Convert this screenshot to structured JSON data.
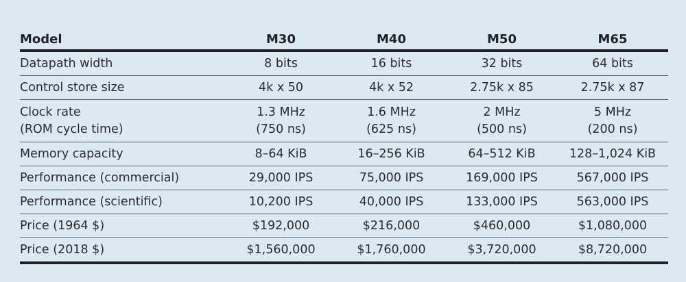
{
  "table": {
    "header": {
      "label": "Model",
      "models": [
        "M30",
        "M40",
        "M50",
        "M65"
      ]
    },
    "rows": [
      {
        "label": "Datapath width",
        "values": [
          "8 bits",
          "16 bits",
          "32 bits",
          "64 bits"
        ]
      },
      {
        "label": "Control store size",
        "values": [
          "4k x 50",
          "4k x 52",
          "2.75k x 85",
          "2.75k x 87"
        ]
      },
      {
        "label": "Clock rate",
        "sublabel": "(ROM cycle time)",
        "values": [
          "1.3 MHz",
          "1.6 MHz",
          "2 MHz",
          "5 MHz"
        ],
        "subvalues": [
          "(750 ns)",
          "(625 ns)",
          "(500 ns)",
          "(200 ns)"
        ]
      },
      {
        "label": "Memory capacity",
        "values": [
          "8–64 KiB",
          "16–256 KiB",
          "64–512 KiB",
          "128–1,024 KiB"
        ]
      },
      {
        "label": "Performance (commercial)",
        "values": [
          "29,000 IPS",
          "75,000 IPS",
          "169,000 IPS",
          "567,000 IPS"
        ]
      },
      {
        "label": "Performance (scientific)",
        "values": [
          "10,200 IPS",
          "40,000 IPS",
          "133,000 IPS",
          "563,000 IPS"
        ]
      },
      {
        "label": "Price (1964 $)",
        "values": [
          "$192,000",
          "$216,000",
          "$460,000",
          "$1,080,000"
        ]
      },
      {
        "label": "Price (2018 $)",
        "values": [
          "$1,560,000",
          "$1,760,000",
          "$3,720,000",
          "$8,720,000"
        ]
      }
    ]
  },
  "colors": {
    "background": "#dde9f1",
    "text": "#2a2c33",
    "rule": "#1f2128"
  }
}
